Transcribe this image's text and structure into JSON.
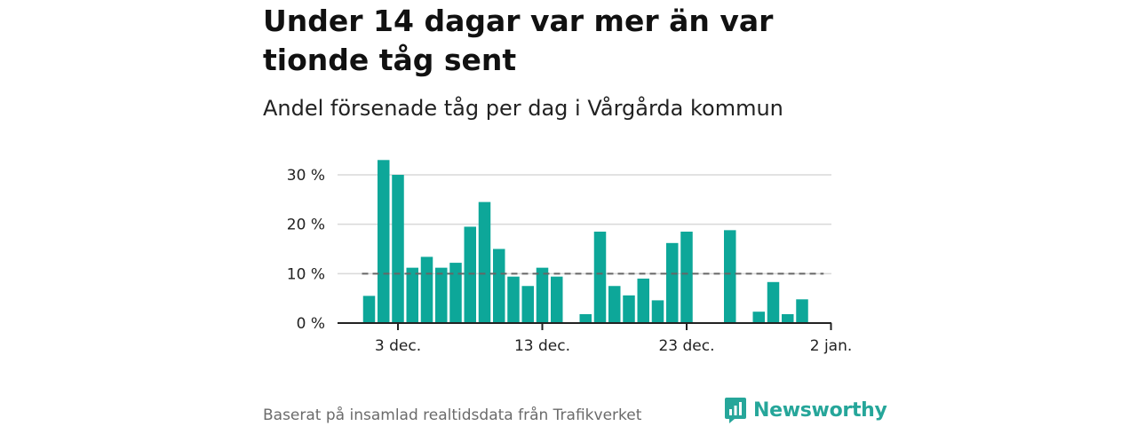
{
  "title": "Under 14 dagar var mer än var tionde tåg sent",
  "subtitle": "Andel försenade tåg per dag i Vårgårda kommun",
  "footer": "Baserat på insamlad realtidsdata från Trafikverket",
  "brand": "Newsworthy",
  "colors": {
    "bar": "#0da799",
    "reference": "#666666",
    "grid": "#d9d9d9",
    "axis": "#222222",
    "brand": "#26a69a"
  },
  "chart_data": {
    "type": "bar",
    "title": "Under 14 dagar var mer än var tionde tåg sent",
    "subtitle": "Andel försenade tåg per dag i Vårgårda kommun",
    "xlabel": "",
    "ylabel": "",
    "ylim": [
      0,
      33
    ],
    "yticks": [
      0,
      10,
      20,
      30
    ],
    "ytick_labels": [
      "0 %",
      "10 %",
      "20 %",
      "30 %"
    ],
    "xticks": [
      3,
      13,
      23,
      33
    ],
    "xtick_labels": [
      "3 dec.",
      "13 dec.",
      "23 dec.",
      "2 jan."
    ],
    "grid": true,
    "reference_line": 10,
    "x": [
      1,
      2,
      3,
      4,
      5,
      6,
      7,
      8,
      9,
      10,
      11,
      12,
      13,
      14,
      15,
      16,
      17,
      18,
      19,
      20,
      21,
      22,
      23,
      24,
      25,
      26,
      27,
      28,
      29,
      30,
      31,
      32
    ],
    "values": [
      5.5,
      33,
      30,
      11.2,
      13.4,
      11.2,
      12.2,
      19.5,
      24.5,
      15,
      9.4,
      7.5,
      11.2,
      9.4,
      0,
      1.8,
      18.5,
      7.5,
      5.6,
      9,
      4.6,
      16.2,
      18.5,
      0,
      0,
      18.8,
      0,
      2.3,
      8.3,
      1.8,
      4.8,
      0
    ]
  }
}
